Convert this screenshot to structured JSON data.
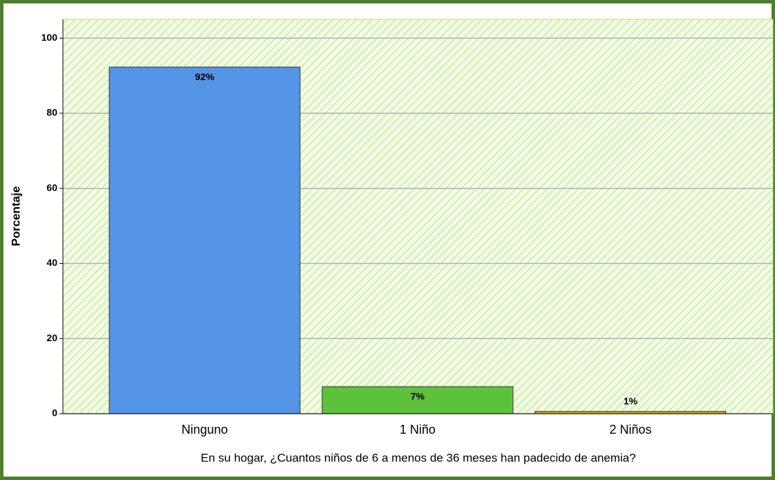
{
  "chart_data": {
    "type": "bar",
    "categories": [
      "Ninguno",
      "1 Niño",
      "2 Niños"
    ],
    "values": [
      92.3,
      7.2,
      0.6
    ],
    "value_labels": [
      "92%",
      "7%",
      "1%"
    ],
    "colors": [
      "#5595e5",
      "#5ec13b",
      "#d9a400"
    ],
    "x_label": "En su hogar, ¿Cuantos niños de 6 a menos de 36 meses han padecido de anemia?",
    "y_label": "Porcentaje",
    "ylim": [
      0,
      105
    ],
    "yticks": [
      0,
      20,
      40,
      60,
      80,
      100
    ],
    "grid": true
  }
}
